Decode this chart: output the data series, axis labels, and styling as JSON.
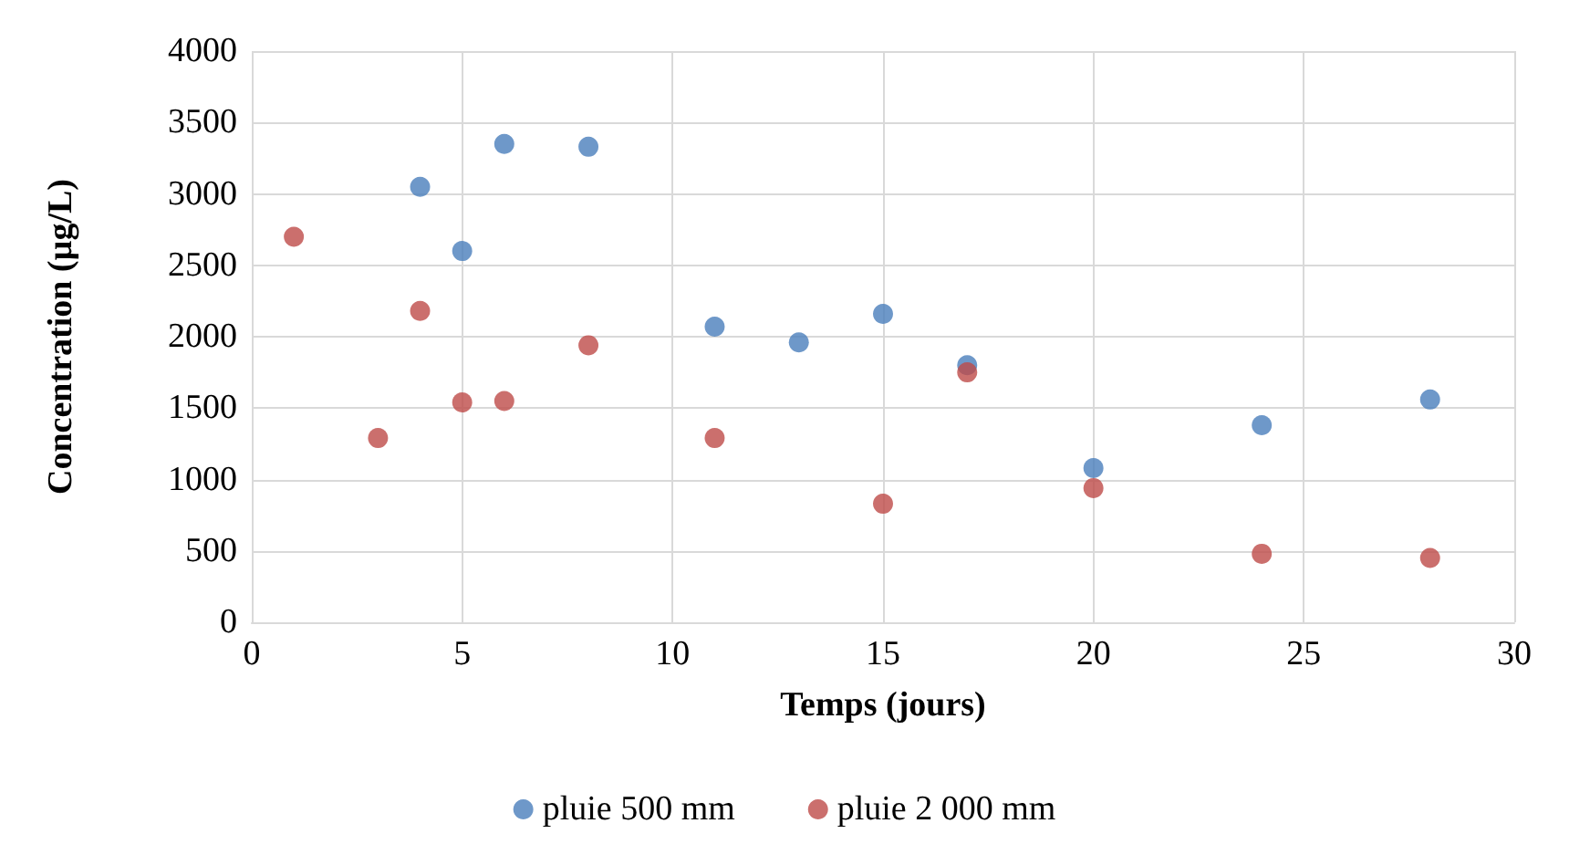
{
  "chart_data": {
    "type": "scatter",
    "xlabel": "Temps (jours)",
    "ylabel": "Concentration (µg/L)",
    "series": [
      {
        "name": "pluie 500 mm",
        "color": "#4a7ebb",
        "x": [
          4,
          5,
          6,
          8,
          11,
          13,
          15,
          17,
          20,
          24,
          28
        ],
        "values": [
          3050,
          2600,
          3350,
          3330,
          2070,
          1960,
          2160,
          1800,
          1080,
          1380,
          1560
        ]
      },
      {
        "name": "pluie 2 000 mm",
        "color": "#be4b48",
        "x": [
          1,
          3,
          4,
          5,
          6,
          8,
          11,
          15,
          17,
          20,
          24,
          28
        ],
        "values": [
          2700,
          1290,
          2180,
          1540,
          1550,
          1940,
          1290,
          830,
          1750,
          940,
          480,
          450
        ]
      }
    ],
    "xlim": [
      0,
      30
    ],
    "xticks": [
      0,
      5,
      10,
      15,
      20,
      25,
      30
    ],
    "ylim": [
      0,
      4000
    ],
    "yticks": [
      0,
      500,
      1000,
      1500,
      2000,
      2500,
      3000,
      3500,
      4000
    ],
    "grid": true,
    "legend": "bottom",
    "marker": "circle"
  }
}
